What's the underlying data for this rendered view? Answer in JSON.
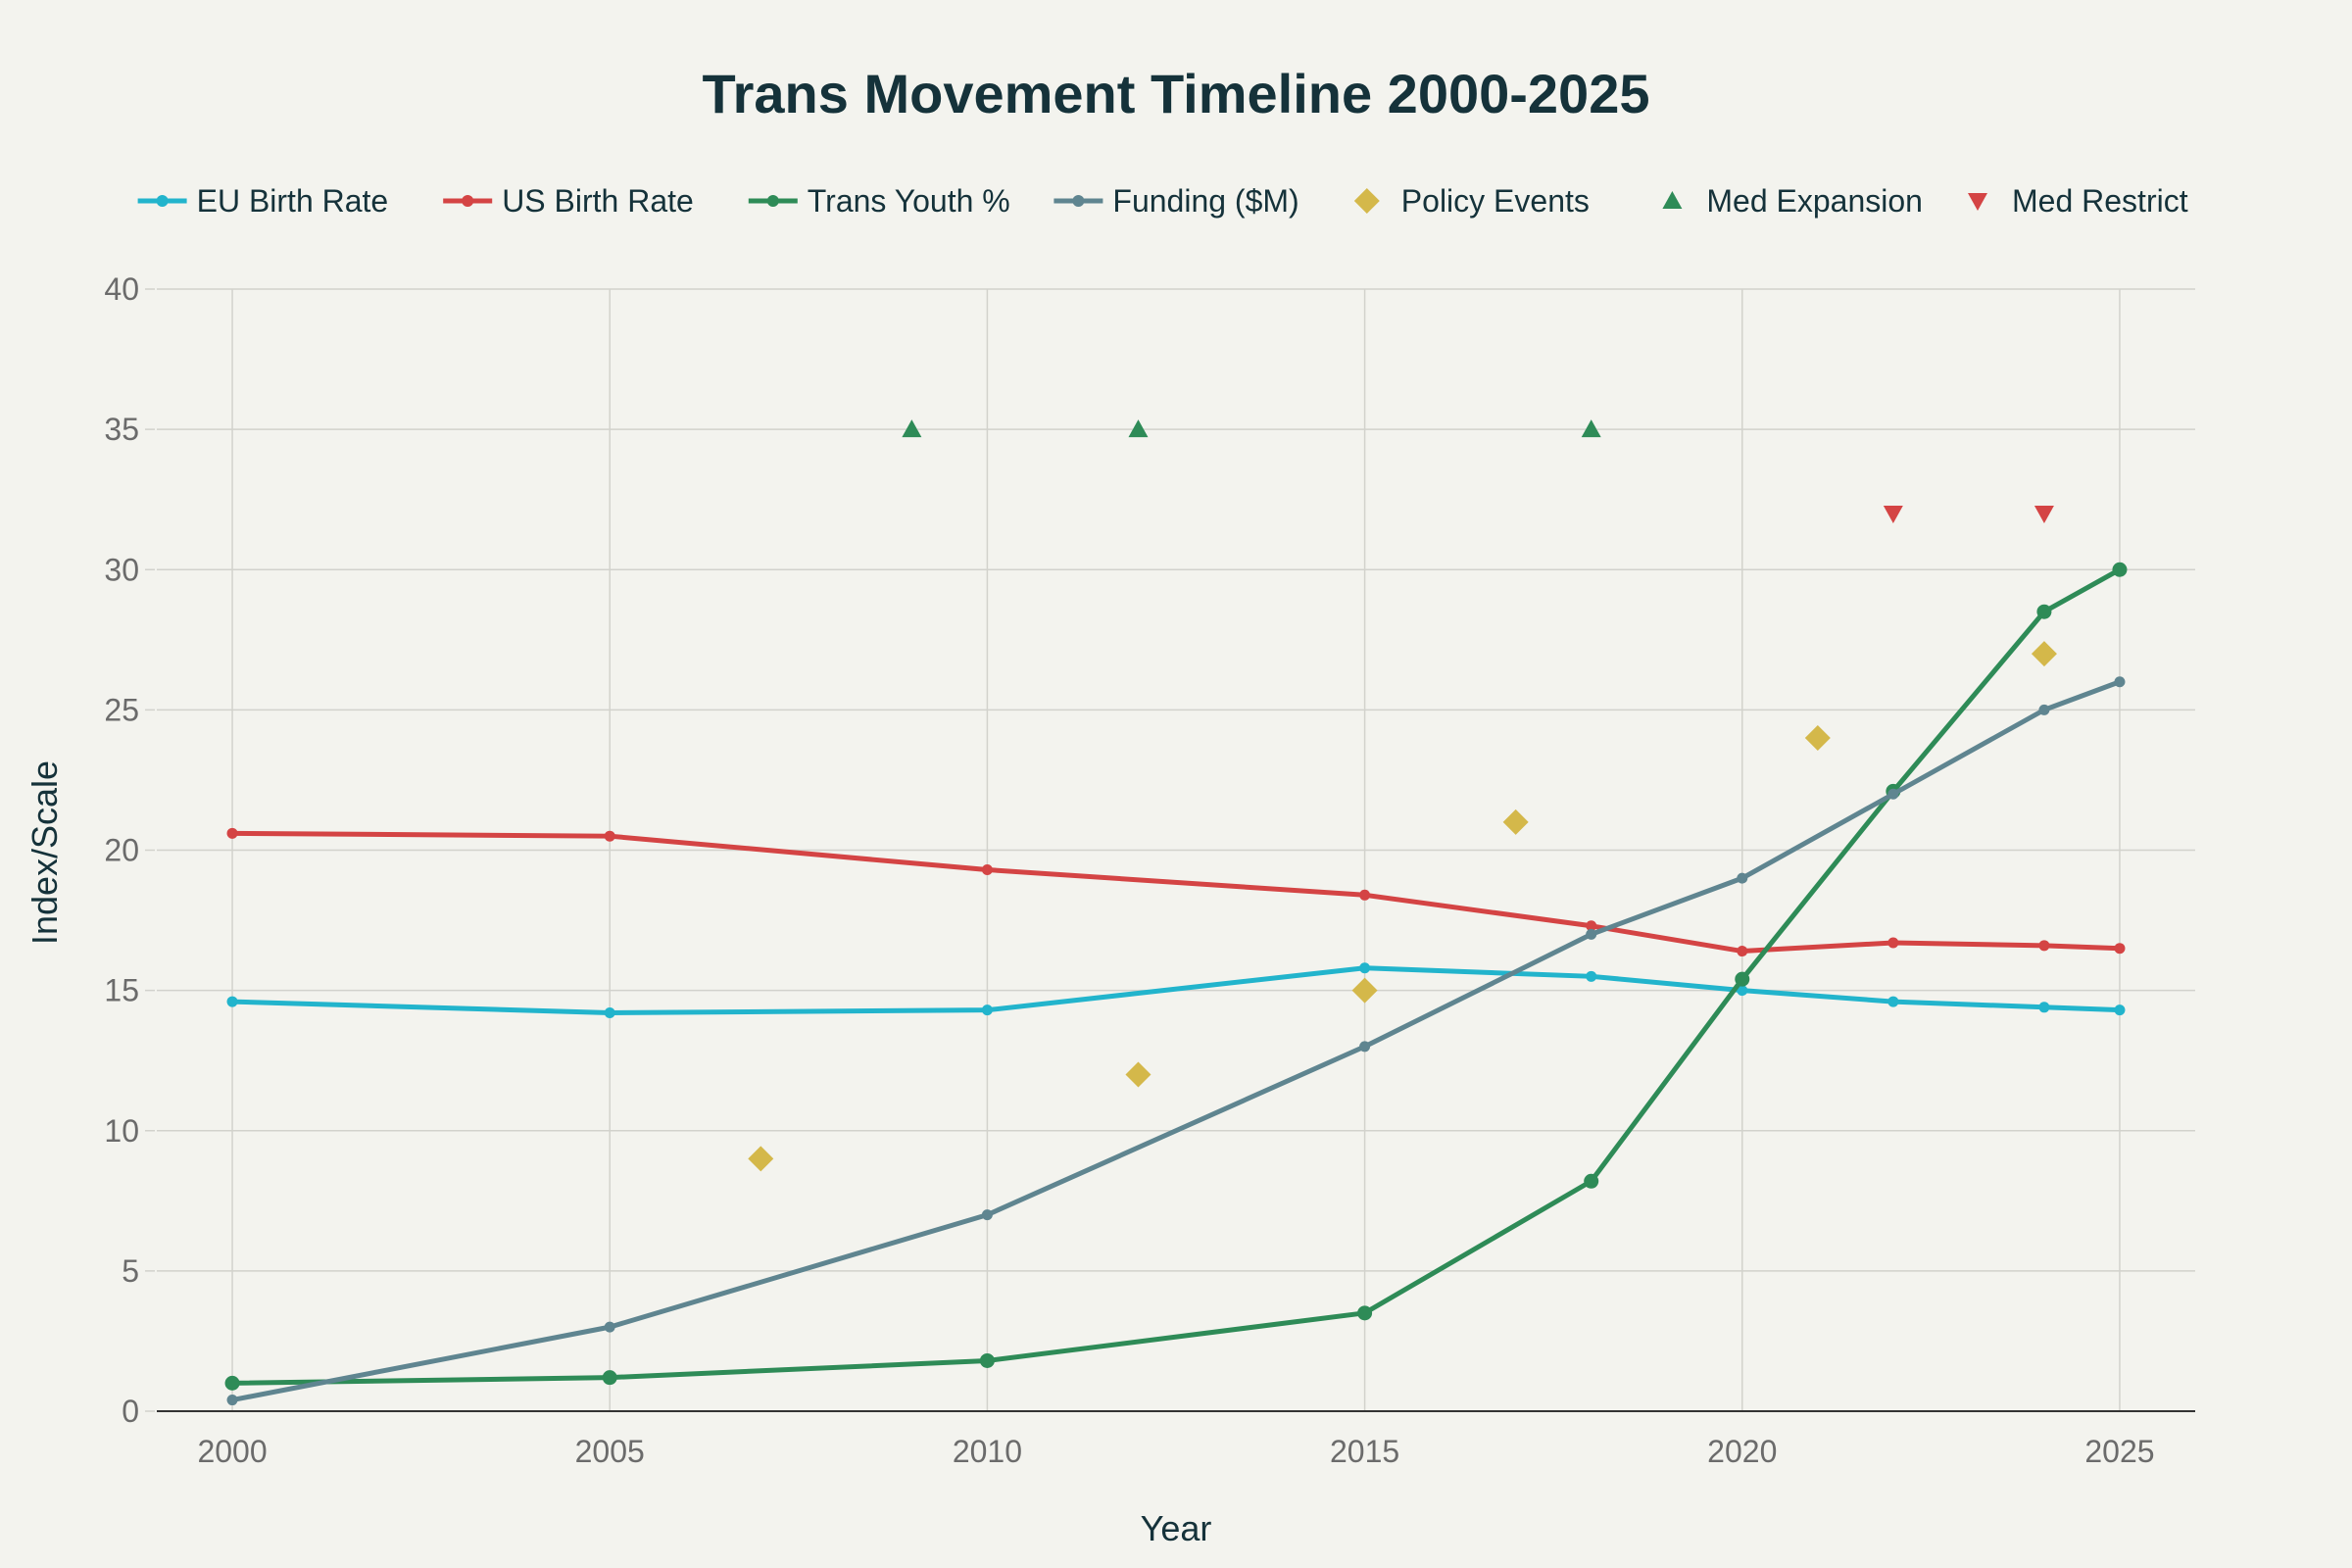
{
  "chart_data": {
    "type": "line",
    "title": "Trans Movement Timeline 2000-2025",
    "xlabel": "Year",
    "ylabel": "Index/Scale",
    "xlim": [
      1999,
      2026
    ],
    "ylim": [
      0,
      40
    ],
    "x_ticks": [
      2000,
      2005,
      2010,
      2015,
      2020,
      2025
    ],
    "y_ticks": [
      0,
      5,
      10,
      15,
      20,
      25,
      30,
      35,
      40
    ],
    "grid": true,
    "legend_position": "top",
    "series": [
      {
        "name": "EU Birth Rate",
        "kind": "line",
        "color": "#22b4cc",
        "x": [
          2000,
          2005,
          2010,
          2015,
          2018,
          2020,
          2022,
          2024,
          2025
        ],
        "values": [
          14.6,
          14.2,
          14.3,
          15.8,
          15.5,
          15.0,
          14.6,
          14.4,
          14.3
        ]
      },
      {
        "name": "US Birth Rate",
        "kind": "line",
        "color": "#d44444",
        "x": [
          2000,
          2005,
          2010,
          2015,
          2018,
          2020,
          2022,
          2024,
          2025
        ],
        "values": [
          20.6,
          20.5,
          19.3,
          18.4,
          17.3,
          16.4,
          16.7,
          16.6,
          16.5
        ]
      },
      {
        "name": "Trans Youth %",
        "kind": "line",
        "color": "#2e8b57",
        "x": [
          2000,
          2005,
          2010,
          2015,
          2018,
          2020,
          2022,
          2024,
          2025
        ],
        "values": [
          1.0,
          1.2,
          1.8,
          3.5,
          8.2,
          15.4,
          22.1,
          28.5,
          30.0
        ]
      },
      {
        "name": "Funding ($M)",
        "kind": "line",
        "color": "#5f8590",
        "x": [
          2000,
          2005,
          2010,
          2015,
          2018,
          2020,
          2022,
          2024,
          2025
        ],
        "values": [
          0.4,
          3.0,
          7.0,
          13.0,
          17.0,
          19.0,
          22.0,
          25.0,
          26.0
        ]
      },
      {
        "name": "Policy Events",
        "kind": "diamond",
        "color": "#d4b84a",
        "x": [
          2007,
          2012,
          2015,
          2017,
          2021,
          2024
        ],
        "values": [
          9,
          12,
          15,
          21,
          24,
          27
        ]
      },
      {
        "name": "Med Expansion",
        "kind": "triangle-up",
        "color": "#2e8b57",
        "x": [
          2009,
          2012,
          2018
        ],
        "values": [
          35,
          35,
          35
        ]
      },
      {
        "name": "Med Restrict",
        "kind": "triangle-down",
        "color": "#d44444",
        "x": [
          2022,
          2024
        ],
        "values": [
          32,
          32
        ]
      }
    ]
  }
}
